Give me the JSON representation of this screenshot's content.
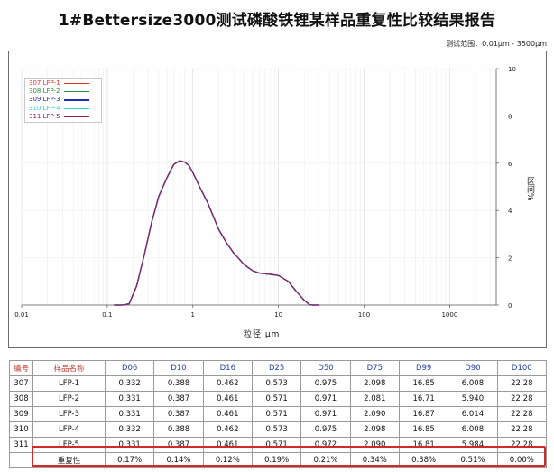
{
  "report": {
    "title": "1#Bettersize3000测试磷酸铁锂某样品重复性比较结果报告",
    "range_text": "测试范围：0.01μm - 3500μm"
  },
  "chart_data": {
    "type": "line",
    "xscale": "log",
    "xlim": [
      0.01,
      3500
    ],
    "ylim": [
      0,
      10
    ],
    "xlabel": "粒径 μm",
    "ylabel": "区间%",
    "xticks": [
      "0.01",
      "0.1",
      "1",
      "10",
      "100",
      "1000"
    ],
    "yticks": [
      "0",
      "2",
      "4",
      "6",
      "8",
      "10"
    ],
    "grid": true,
    "legend_position": "top-left",
    "series": [
      {
        "name": "307  LFP-1",
        "color": "#e0312b",
        "x": [
          0.12,
          0.15,
          0.18,
          0.22,
          0.27,
          0.33,
          0.4,
          0.5,
          0.6,
          0.7,
          0.8,
          0.9,
          1.0,
          1.2,
          1.5,
          2.0,
          2.5,
          3.0,
          4.0,
          5.0,
          6.0,
          8.0,
          10,
          13,
          16,
          20,
          23,
          25,
          30
        ],
        "y": [
          0,
          0,
          0.05,
          0.8,
          2.1,
          3.5,
          4.6,
          5.4,
          5.95,
          6.1,
          6.05,
          5.9,
          5.6,
          5.0,
          4.3,
          3.2,
          2.6,
          2.2,
          1.7,
          1.45,
          1.35,
          1.3,
          1.25,
          1.0,
          0.6,
          0.2,
          0.02,
          0,
          0
        ]
      },
      {
        "name": "308  LFP-2",
        "color": "#2e8b3a",
        "x": [
          0.12,
          0.15,
          0.18,
          0.22,
          0.27,
          0.33,
          0.4,
          0.5,
          0.6,
          0.7,
          0.8,
          0.9,
          1.0,
          1.2,
          1.5,
          2.0,
          2.5,
          3.0,
          4.0,
          5.0,
          6.0,
          8.0,
          10,
          13,
          16,
          20,
          23,
          25,
          30
        ],
        "y": [
          0,
          0,
          0.05,
          0.8,
          2.1,
          3.5,
          4.6,
          5.4,
          5.95,
          6.1,
          6.05,
          5.9,
          5.6,
          5.0,
          4.3,
          3.2,
          2.6,
          2.2,
          1.7,
          1.45,
          1.35,
          1.3,
          1.25,
          1.0,
          0.6,
          0.2,
          0.02,
          0,
          0
        ]
      },
      {
        "name": "309  LFP-3",
        "color": "#1f2fb0",
        "x": [
          0.12,
          0.15,
          0.18,
          0.22,
          0.27,
          0.33,
          0.4,
          0.5,
          0.6,
          0.7,
          0.8,
          0.9,
          1.0,
          1.2,
          1.5,
          2.0,
          2.5,
          3.0,
          4.0,
          5.0,
          6.0,
          8.0,
          10,
          13,
          16,
          20,
          23,
          25,
          30
        ],
        "y": [
          0,
          0,
          0.05,
          0.8,
          2.1,
          3.5,
          4.6,
          5.4,
          5.95,
          6.1,
          6.05,
          5.9,
          5.6,
          5.0,
          4.3,
          3.2,
          2.6,
          2.2,
          1.7,
          1.45,
          1.35,
          1.3,
          1.25,
          1.0,
          0.6,
          0.2,
          0.02,
          0,
          0
        ]
      },
      {
        "name": "310  LFP-4",
        "color": "#2ad4d4",
        "x": [
          0.12,
          0.15,
          0.18,
          0.22,
          0.27,
          0.33,
          0.4,
          0.5,
          0.6,
          0.7,
          0.8,
          0.9,
          1.0,
          1.2,
          1.5,
          2.0,
          2.5,
          3.0,
          4.0,
          5.0,
          6.0,
          8.0,
          10,
          13,
          16,
          20,
          23,
          25,
          30
        ],
        "y": [
          0,
          0,
          0.05,
          0.8,
          2.1,
          3.5,
          4.6,
          5.4,
          5.95,
          6.1,
          6.05,
          5.9,
          5.6,
          5.0,
          4.3,
          3.2,
          2.6,
          2.2,
          1.7,
          1.45,
          1.35,
          1.3,
          1.25,
          1.0,
          0.6,
          0.2,
          0.02,
          0,
          0
        ]
      },
      {
        "name": "311  LFP-5",
        "color": "#8a1f6e",
        "x": [
          0.12,
          0.15,
          0.18,
          0.22,
          0.27,
          0.33,
          0.4,
          0.5,
          0.6,
          0.7,
          0.8,
          0.9,
          1.0,
          1.2,
          1.5,
          2.0,
          2.5,
          3.0,
          4.0,
          5.0,
          6.0,
          8.0,
          10,
          13,
          16,
          20,
          23,
          25,
          30
        ],
        "y": [
          0,
          0,
          0.05,
          0.8,
          2.1,
          3.5,
          4.6,
          5.4,
          5.95,
          6.1,
          6.05,
          5.9,
          5.6,
          5.0,
          4.3,
          3.2,
          2.6,
          2.2,
          1.7,
          1.45,
          1.35,
          1.3,
          1.25,
          1.0,
          0.6,
          0.2,
          0.02,
          0,
          0
        ]
      }
    ]
  },
  "table": {
    "headers": [
      "编号",
      "样品名称",
      "D06",
      "D10",
      "D16",
      "D25",
      "D50",
      "D75",
      "D99",
      "D90",
      "D100"
    ],
    "rows": [
      [
        "307",
        "LFP-1",
        "0.332",
        "0.388",
        "0.462",
        "0.573",
        "0.975",
        "2.098",
        "16.85",
        "6.008",
        "22.28"
      ],
      [
        "308",
        "LFP-2",
        "0.331",
        "0.387",
        "0.461",
        "0.571",
        "0.971",
        "2.081",
        "16.71",
        "5.940",
        "22.28"
      ],
      [
        "309",
        "LFP-3",
        "0.331",
        "0.387",
        "0.461",
        "0.571",
        "0.971",
        "2.090",
        "16.87",
        "6.014",
        "22.28"
      ],
      [
        "310",
        "LFP-4",
        "0.332",
        "0.388",
        "0.462",
        "0.573",
        "0.975",
        "2.098",
        "16.85",
        "6.008",
        "22.28"
      ],
      [
        "311",
        "LFP-5",
        "0.331",
        "0.387",
        "0.461",
        "0.571",
        "0.972",
        "2.090",
        "16.81",
        "5.984",
        "22.28"
      ],
      [
        "",
        "重复性",
        "0.17%",
        "0.14%",
        "0.12%",
        "0.19%",
        "0.21%",
        "0.34%",
        "0.38%",
        "0.51%",
        "0.00%"
      ]
    ]
  },
  "colors": {
    "header_red": "#c0392b",
    "header_blue": "#1f3fa6",
    "highlight": "#d12a2a"
  }
}
